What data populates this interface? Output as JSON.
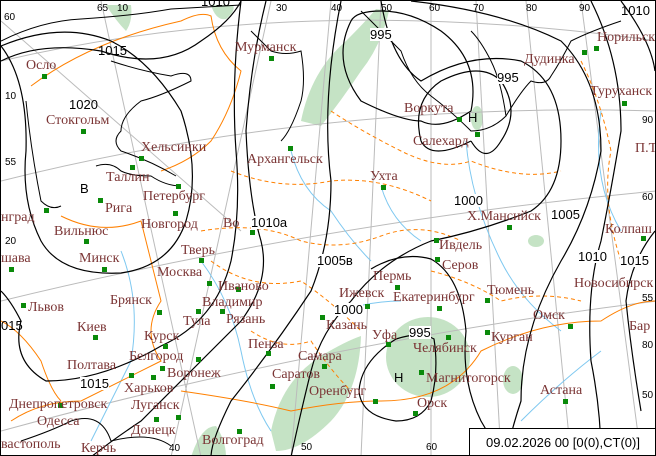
{
  "timestamp": "09.02.2026 00 [0(0),CT(0)]",
  "colors": {
    "city_label": "#7b3535",
    "station_marker": "#0a8a0a",
    "isobar": "#000000",
    "border": "#ff8000",
    "river": "#7ec8f0",
    "precip_area": "#c5e3c5",
    "graticule": "#bbbbbb"
  },
  "cities": [
    "Осло",
    "Стокгольм",
    "Хельсинки",
    "Таллин",
    "Петербург",
    "Рига",
    "Новгород",
    "Во",
    "Мурманск",
    "Архангельск",
    "нград",
    "Вильнюс",
    "Минск",
    "Тверь",
    "Москва",
    "Иваново",
    "Брянск",
    "Владимир",
    "Тула",
    "Рязань",
    "Львов",
    "шава",
    "Киев",
    "Курск",
    "Пенза",
    "Белгород",
    "Полтава",
    "Воронеж",
    "Харьков",
    "Днепропетровск",
    "Луганск",
    "Одесса",
    "Донецк",
    "вастополь",
    "Керчь",
    "Волгоград",
    "Саратов",
    "Самара",
    "Оренбург",
    "Казань",
    "Ижевск",
    "Пермь",
    "Екатеринбург",
    "Уфа",
    "Челябинск",
    "Магнитогорск",
    "Орск",
    "Ивдель",
    "Серов",
    "Тюмень",
    "Курган",
    "Омск",
    "Астана",
    "Новосибирск",
    "Бар",
    "Колпаш",
    "Ухта",
    "Воркута",
    "Салехард",
    "Х.Мансийск",
    "Дудинка",
    "Норильск",
    "Туруханск",
    "П.Т"
  ],
  "pressure_labels": [
    "1015",
    "1020",
    "1010а",
    "1005в",
    "1000",
    "995",
    "Н",
    "В",
    "995",
    "Н",
    "995",
    "1000",
    "1005",
    "1010",
    "1015",
    "015",
    "1015",
    "1010",
    "1010"
  ],
  "grid_labels": [
    "60",
    "65",
    "10",
    "30",
    "40",
    "50",
    "60",
    "70",
    "80",
    "90",
    "90",
    "60",
    "55",
    "80",
    "50",
    "10",
    "55",
    "20",
    "40",
    "50",
    "60"
  ]
}
